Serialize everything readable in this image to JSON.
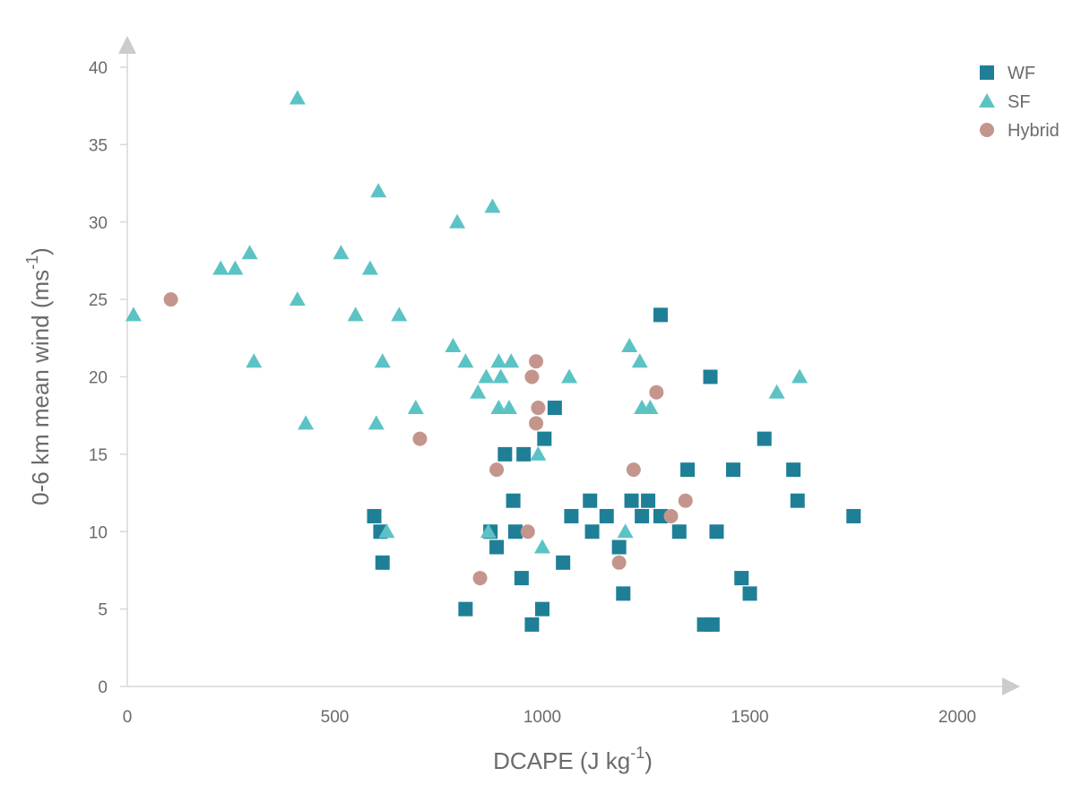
{
  "chart_data": {
    "type": "scatter",
    "title": "",
    "xlabel": {
      "base": "DCAPE (J kg",
      "sup": "-1",
      "end": ")"
    },
    "ylabel": {
      "base": "0-6 km mean wind (ms",
      "sup": "-1",
      "end": ")"
    },
    "xlim": [
      0,
      2100
    ],
    "ylim": [
      0,
      42
    ],
    "x_ticks": [
      "0",
      "500",
      "1000",
      "1500",
      "2000"
    ],
    "y_ticks": [
      "0",
      "5",
      "10",
      "15",
      "20",
      "25",
      "30",
      "35",
      "40"
    ],
    "grid": false,
    "legend_position": "top-right",
    "series": [
      {
        "name": "WF",
        "marker": "square",
        "color": "#1f7f97",
        "points": [
          [
            595,
            11
          ],
          [
            610,
            10
          ],
          [
            615,
            8
          ],
          [
            815,
            5
          ],
          [
            875,
            10
          ],
          [
            890,
            9
          ],
          [
            910,
            15
          ],
          [
            930,
            12
          ],
          [
            935,
            10
          ],
          [
            950,
            7
          ],
          [
            955,
            15
          ],
          [
            975,
            4
          ],
          [
            1000,
            5
          ],
          [
            1005,
            16
          ],
          [
            1030,
            18
          ],
          [
            1050,
            8
          ],
          [
            1070,
            11
          ],
          [
            1115,
            12
          ],
          [
            1120,
            10
          ],
          [
            1155,
            11
          ],
          [
            1185,
            9
          ],
          [
            1195,
            6
          ],
          [
            1215,
            12
          ],
          [
            1240,
            11
          ],
          [
            1255,
            12
          ],
          [
            1285,
            11
          ],
          [
            1285,
            24
          ],
          [
            1330,
            10
          ],
          [
            1350,
            14
          ],
          [
            1390,
            4
          ],
          [
            1405,
            20
          ],
          [
            1410,
            4
          ],
          [
            1420,
            10
          ],
          [
            1460,
            14
          ],
          [
            1480,
            7
          ],
          [
            1500,
            6
          ],
          [
            1535,
            16
          ],
          [
            1605,
            14
          ],
          [
            1615,
            12
          ],
          [
            1750,
            11
          ]
        ]
      },
      {
        "name": "SF",
        "marker": "triangle",
        "color": "#5cc3c5",
        "points": [
          [
            15,
            24
          ],
          [
            225,
            27
          ],
          [
            260,
            27
          ],
          [
            295,
            28
          ],
          [
            305,
            21
          ],
          [
            410,
            25
          ],
          [
            410,
            38
          ],
          [
            430,
            17
          ],
          [
            515,
            28
          ],
          [
            550,
            24
          ],
          [
            585,
            27
          ],
          [
            600,
            17
          ],
          [
            605,
            32
          ],
          [
            615,
            21
          ],
          [
            625,
            10
          ],
          [
            655,
            24
          ],
          [
            695,
            18
          ],
          [
            785,
            22
          ],
          [
            795,
            30
          ],
          [
            815,
            21
          ],
          [
            845,
            19
          ],
          [
            865,
            20
          ],
          [
            870,
            10
          ],
          [
            880,
            31
          ],
          [
            895,
            18
          ],
          [
            895,
            21
          ],
          [
            900,
            20
          ],
          [
            920,
            18
          ],
          [
            925,
            21
          ],
          [
            990,
            15
          ],
          [
            1000,
            9
          ],
          [
            1065,
            20
          ],
          [
            1200,
            10
          ],
          [
            1210,
            22
          ],
          [
            1235,
            21
          ],
          [
            1240,
            18
          ],
          [
            1260,
            18
          ],
          [
            1565,
            19
          ],
          [
            1620,
            20
          ]
        ]
      },
      {
        "name": "Hybrid",
        "marker": "circle",
        "color": "#c4958c",
        "points": [
          [
            105,
            25
          ],
          [
            705,
            16
          ],
          [
            850,
            7
          ],
          [
            890,
            14
          ],
          [
            965,
            10
          ],
          [
            975,
            20
          ],
          [
            985,
            21
          ],
          [
            985,
            17
          ],
          [
            990,
            18
          ],
          [
            1185,
            8
          ],
          [
            1220,
            14
          ],
          [
            1275,
            19
          ],
          [
            1310,
            11
          ],
          [
            1345,
            12
          ]
        ]
      }
    ]
  }
}
